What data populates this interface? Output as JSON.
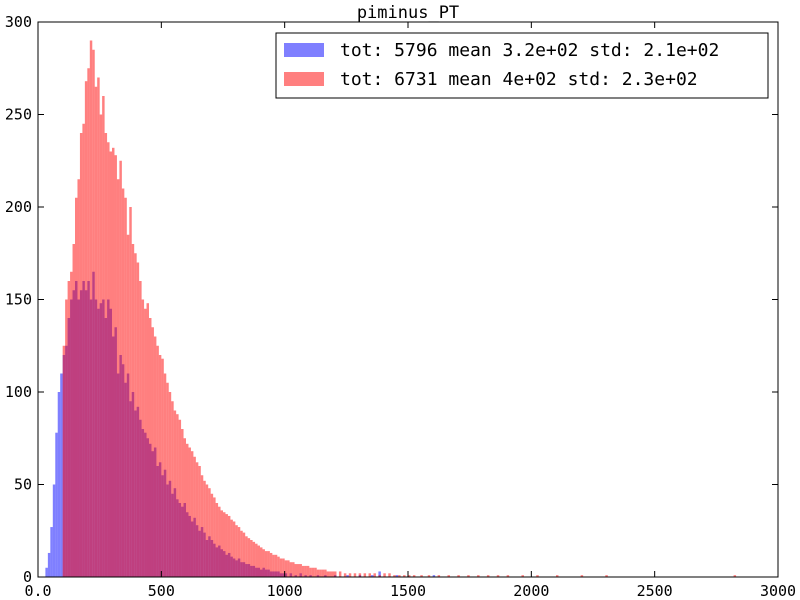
{
  "chart_data": {
    "type": "bar",
    "title": "piminus_PT",
    "xlabel": "",
    "ylabel": "",
    "xlim": [
      0,
      3000
    ],
    "ylim": [
      0,
      300
    ],
    "xticks": [
      "0.0",
      "500",
      "1000",
      "1500",
      "2000",
      "2500",
      "3000"
    ],
    "yticks": [
      "0",
      "50",
      "100",
      "150",
      "200",
      "250",
      "300"
    ],
    "grid": false,
    "legend_position": "top-right",
    "bin_width": 10,
    "series": [
      {
        "name": "tot: 5796 mean 3.2e+02 std: 2.1e+02",
        "color": "#0000ff",
        "alpha": 0.5,
        "points": [
          [
            30,
            5
          ],
          [
            40,
            13
          ],
          [
            50,
            27
          ],
          [
            60,
            50
          ],
          [
            70,
            78
          ],
          [
            80,
            100
          ],
          [
            90,
            110
          ],
          [
            100,
            120
          ],
          [
            110,
            125
          ],
          [
            120,
            140
          ],
          [
            130,
            150
          ],
          [
            140,
            155
          ],
          [
            150,
            160
          ],
          [
            160,
            150
          ],
          [
            170,
            155
          ],
          [
            180,
            160
          ],
          [
            190,
            155
          ],
          [
            200,
            160
          ],
          [
            210,
            150
          ],
          [
            220,
            165
          ],
          [
            230,
            150
          ],
          [
            240,
            145
          ],
          [
            250,
            148
          ],
          [
            260,
            150
          ],
          [
            270,
            140
          ],
          [
            280,
            150
          ],
          [
            290,
            145
          ],
          [
            300,
            130
          ],
          [
            310,
            135
          ],
          [
            320,
            110
          ],
          [
            330,
            120
          ],
          [
            340,
            115
          ],
          [
            350,
            105
          ],
          [
            360,
            110
          ],
          [
            370,
            95
          ],
          [
            380,
            100
          ],
          [
            390,
            90
          ],
          [
            400,
            92
          ],
          [
            410,
            85
          ],
          [
            420,
            80
          ],
          [
            430,
            78
          ],
          [
            440,
            75
          ],
          [
            450,
            72
          ],
          [
            460,
            68
          ],
          [
            470,
            70
          ],
          [
            480,
            60
          ],
          [
            490,
            62
          ],
          [
            500,
            55
          ],
          [
            510,
            58
          ],
          [
            520,
            50
          ],
          [
            530,
            52
          ],
          [
            540,
            45
          ],
          [
            550,
            48
          ],
          [
            560,
            42
          ],
          [
            570,
            40
          ],
          [
            580,
            38
          ],
          [
            590,
            40
          ],
          [
            600,
            35
          ],
          [
            610,
            33
          ],
          [
            620,
            30
          ],
          [
            630,
            32
          ],
          [
            640,
            28
          ],
          [
            650,
            25
          ],
          [
            660,
            27
          ],
          [
            670,
            24
          ],
          [
            680,
            20
          ],
          [
            690,
            22
          ],
          [
            700,
            20
          ],
          [
            710,
            18
          ],
          [
            720,
            16
          ],
          [
            730,
            17
          ],
          [
            740,
            15
          ],
          [
            750,
            14
          ],
          [
            760,
            12
          ],
          [
            770,
            13
          ],
          [
            780,
            11
          ],
          [
            790,
            10
          ],
          [
            800,
            9
          ],
          [
            810,
            10
          ],
          [
            820,
            8
          ],
          [
            830,
            8
          ],
          [
            840,
            7
          ],
          [
            850,
            7
          ],
          [
            860,
            6
          ],
          [
            870,
            6
          ],
          [
            880,
            5
          ],
          [
            890,
            5
          ],
          [
            900,
            4
          ],
          [
            910,
            5
          ],
          [
            920,
            4
          ],
          [
            930,
            4
          ],
          [
            940,
            3
          ],
          [
            950,
            3
          ],
          [
            960,
            3
          ],
          [
            970,
            3
          ],
          [
            980,
            2
          ],
          [
            990,
            2
          ],
          [
            1000,
            2
          ],
          [
            1020,
            2
          ],
          [
            1040,
            1
          ],
          [
            1060,
            2
          ],
          [
            1080,
            1
          ],
          [
            1100,
            1
          ],
          [
            1130,
            1
          ],
          [
            1160,
            1
          ],
          [
            1200,
            1
          ],
          [
            1250,
            1
          ],
          [
            1300,
            1
          ],
          [
            1350,
            1
          ],
          [
            1380,
            3
          ],
          [
            1450,
            1
          ],
          [
            1600,
            1
          ]
        ]
      },
      {
        "name": "tot: 6731 mean 4e+02 std: 2.3e+02",
        "color": "#ff0000",
        "alpha": 0.5,
        "points": [
          [
            100,
            125
          ],
          [
            110,
            150
          ],
          [
            120,
            160
          ],
          [
            130,
            165
          ],
          [
            140,
            180
          ],
          [
            150,
            205
          ],
          [
            160,
            215
          ],
          [
            170,
            240
          ],
          [
            180,
            245
          ],
          [
            190,
            268
          ],
          [
            200,
            275
          ],
          [
            210,
            290
          ],
          [
            220,
            285
          ],
          [
            230,
            265
          ],
          [
            240,
            270
          ],
          [
            250,
            250
          ],
          [
            260,
            260
          ],
          [
            270,
            240
          ],
          [
            280,
            235
          ],
          [
            290,
            230
          ],
          [
            300,
            232
          ],
          [
            310,
            228
          ],
          [
            320,
            215
          ],
          [
            330,
            225
          ],
          [
            340,
            210
          ],
          [
            350,
            205
          ],
          [
            360,
            185
          ],
          [
            370,
            200
          ],
          [
            380,
            180
          ],
          [
            390,
            175
          ],
          [
            400,
            170
          ],
          [
            410,
            160
          ],
          [
            420,
            150
          ],
          [
            430,
            145
          ],
          [
            440,
            148
          ],
          [
            450,
            140
          ],
          [
            460,
            135
          ],
          [
            470,
            130
          ],
          [
            480,
            125
          ],
          [
            490,
            120
          ],
          [
            500,
            118
          ],
          [
            510,
            110
          ],
          [
            520,
            105
          ],
          [
            530,
            100
          ],
          [
            540,
            95
          ],
          [
            550,
            90
          ],
          [
            560,
            88
          ],
          [
            570,
            85
          ],
          [
            580,
            80
          ],
          [
            590,
            75
          ],
          [
            600,
            72
          ],
          [
            610,
            70
          ],
          [
            620,
            68
          ],
          [
            630,
            65
          ],
          [
            640,
            62
          ],
          [
            650,
            60
          ],
          [
            660,
            55
          ],
          [
            670,
            52
          ],
          [
            680,
            50
          ],
          [
            690,
            48
          ],
          [
            700,
            45
          ],
          [
            710,
            43
          ],
          [
            720,
            40
          ],
          [
            730,
            38
          ],
          [
            740,
            36
          ],
          [
            750,
            35
          ],
          [
            760,
            34
          ],
          [
            770,
            33
          ],
          [
            780,
            31
          ],
          [
            790,
            30
          ],
          [
            800,
            28
          ],
          [
            810,
            27
          ],
          [
            820,
            25
          ],
          [
            830,
            24
          ],
          [
            840,
            22
          ],
          [
            850,
            21
          ],
          [
            860,
            20
          ],
          [
            870,
            19
          ],
          [
            880,
            18
          ],
          [
            890,
            17
          ],
          [
            900,
            16
          ],
          [
            910,
            15
          ],
          [
            920,
            14
          ],
          [
            930,
            14
          ],
          [
            940,
            13
          ],
          [
            950,
            12
          ],
          [
            960,
            12
          ],
          [
            970,
            11
          ],
          [
            980,
            10
          ],
          [
            990,
            10
          ],
          [
            1000,
            9
          ],
          [
            1010,
            9
          ],
          [
            1020,
            8
          ],
          [
            1030,
            8
          ],
          [
            1040,
            7
          ],
          [
            1050,
            7
          ],
          [
            1060,
            7
          ],
          [
            1070,
            6
          ],
          [
            1080,
            6
          ],
          [
            1090,
            6
          ],
          [
            1100,
            5
          ],
          [
            1110,
            5
          ],
          [
            1120,
            5
          ],
          [
            1130,
            4
          ],
          [
            1140,
            4
          ],
          [
            1150,
            4
          ],
          [
            1160,
            4
          ],
          [
            1170,
            3
          ],
          [
            1180,
            3
          ],
          [
            1190,
            3
          ],
          [
            1200,
            3
          ],
          [
            1220,
            3
          ],
          [
            1240,
            2
          ],
          [
            1260,
            2
          ],
          [
            1280,
            2
          ],
          [
            1300,
            2
          ],
          [
            1320,
            2
          ],
          [
            1340,
            2
          ],
          [
            1360,
            2
          ],
          [
            1380,
            1
          ],
          [
            1400,
            2
          ],
          [
            1420,
            2
          ],
          [
            1440,
            1
          ],
          [
            1460,
            1
          ],
          [
            1480,
            1
          ],
          [
            1500,
            1
          ],
          [
            1520,
            1
          ],
          [
            1550,
            1
          ],
          [
            1580,
            1
          ],
          [
            1620,
            1
          ],
          [
            1660,
            1
          ],
          [
            1700,
            1
          ],
          [
            1740,
            1
          ],
          [
            1780,
            1
          ],
          [
            1820,
            1
          ],
          [
            1860,
            1
          ],
          [
            1900,
            1
          ],
          [
            1960,
            1
          ],
          [
            2020,
            1
          ],
          [
            2100,
            1
          ],
          [
            2200,
            1
          ],
          [
            2300,
            1
          ],
          [
            2820,
            1
          ]
        ]
      }
    ]
  }
}
